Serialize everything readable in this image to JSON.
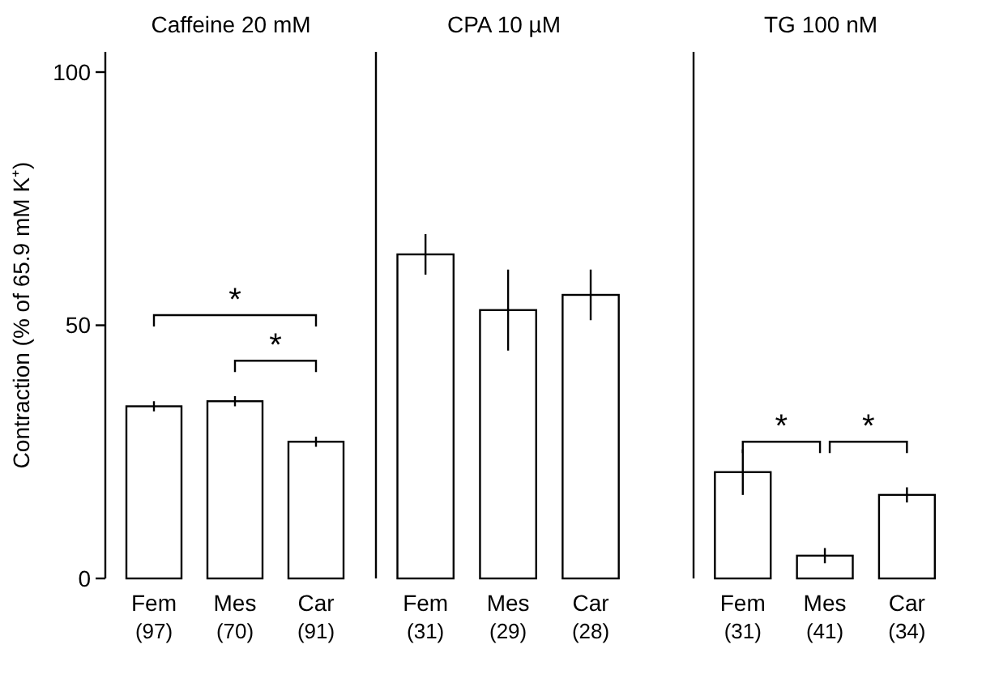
{
  "chart_data": [
    {
      "type": "bar",
      "title": "Caffeine 20 mM",
      "ylabel": "Contraction (% of 65.9 mM K⁺)",
      "categories": [
        "Fem (97)",
        "Mes (70)",
        "Car (91)"
      ],
      "values": [
        34,
        35,
        27
      ],
      "errors": [
        1,
        1,
        1
      ],
      "color": "#ffffff",
      "ylim": [
        0,
        104
      ],
      "yticks": [
        0,
        50,
        100
      ],
      "grid": false,
      "annotations": [
        "*",
        "*"
      ]
    },
    {
      "type": "bar",
      "title": "CPA 10 µM",
      "categories": [
        "Fem (31)",
        "Mes (29)",
        "Car (28)"
      ],
      "values": [
        64,
        53,
        56
      ],
      "errors": [
        4,
        8,
        5
      ],
      "color": "#ffffff",
      "ylim": [
        0,
        104
      ],
      "yticks": [
        0,
        50,
        100
      ],
      "grid": false,
      "tick_labels": "x"
    },
    {
      "type": "bar",
      "title": "TG 100 nM",
      "categories": [
        "Fem (31)",
        "Mes (41)",
        "Car (34)"
      ],
      "values": [
        21,
        4.5,
        16.5
      ],
      "errors": [
        4.5,
        1.5,
        1.5
      ],
      "color": "#ffffff",
      "ylim": [
        0,
        104
      ],
      "yticks": [
        0,
        50,
        100
      ],
      "grid": false,
      "tick_labels": "x",
      "annotations": [
        "*",
        "*"
      ]
    }
  ]
}
